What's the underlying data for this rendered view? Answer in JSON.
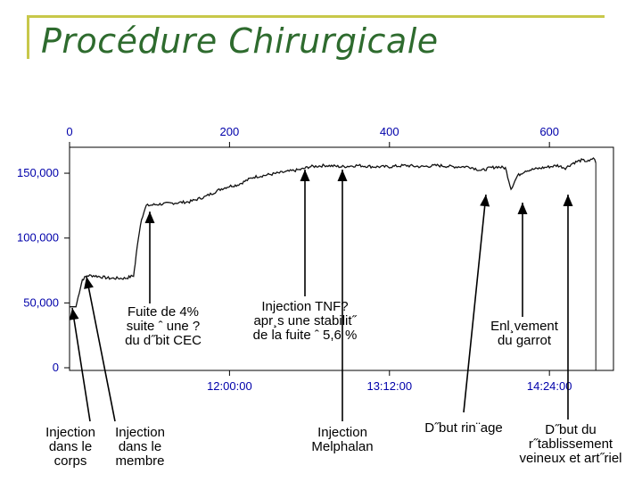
{
  "title": "Procédure Chirurgicale",
  "chart_data": {
    "type": "line",
    "x_top_ticks": [
      0,
      200,
      400,
      600
    ],
    "x_range": [
      0,
      660
    ],
    "y_ticks": [
      0,
      50000,
      100000,
      150000
    ],
    "y_tick_labels": [
      "0",
      "50,000",
      "100,000",
      "150,000"
    ],
    "y_range": [
      0,
      170000
    ],
    "x_bottom_ticks": [
      {
        "x": 200,
        "label": "12:00:00"
      },
      {
        "x": 400,
        "label": "13:12:00"
      },
      {
        "x": 600,
        "label": "14:24:00"
      }
    ],
    "series": [
      {
        "x": [
          0,
          8,
          12,
          16,
          22,
          30,
          50,
          70,
          80,
          82,
          86,
          90,
          96,
          110,
          130,
          150,
          170,
          190,
          200,
          210,
          230,
          250,
          270,
          290,
          300,
          320,
          340,
          360,
          380,
          400,
          420,
          440,
          460,
          480,
          500,
          515,
          525,
          535,
          545,
          552,
          560,
          570,
          580,
          590,
          600,
          610,
          620,
          630,
          640,
          650,
          655,
          658
        ],
        "values": [
          47000,
          47000,
          58000,
          68000,
          71000,
          71000,
          69000,
          69000,
          71000,
          80000,
          100000,
          115000,
          125000,
          126000,
          127000,
          128000,
          132000,
          138000,
          140000,
          141000,
          147000,
          149000,
          151000,
          153000,
          155000,
          156000,
          155000,
          156000,
          155000,
          155000,
          156000,
          155000,
          156000,
          155000,
          155000,
          152000,
          154000,
          155000,
          154000,
          138000,
          148000,
          152000,
          153000,
          154000,
          155000,
          156000,
          154000,
          158000,
          160000,
          159000,
          162000,
          158000
        ]
      }
    ],
    "annotations": [
      {
        "text": "Injection\ndans le\ncorps",
        "x": 0
      },
      {
        "text": "Injection\ndans le\nmembre",
        "x": 14
      },
      {
        "text": "Fuite de 4%\nsuite ˆ une ?\ndu d˝bit CEC",
        "x": 95
      },
      {
        "text": "Injection TNF?\napr¸s une stabilit˝\nde la fuite ˆ 5,6 %",
        "x": 290
      },
      {
        "text": "Injection\nMelphalan",
        "x": 340
      },
      {
        "text": "D˝but rin¨age",
        "x": 515
      },
      {
        "text": "Enl¸vement\ndu garrot",
        "x": 552
      },
      {
        "text": "D˝but du\nr˝tablissement\nveineux et art˝riel",
        "x": 620
      }
    ]
  }
}
